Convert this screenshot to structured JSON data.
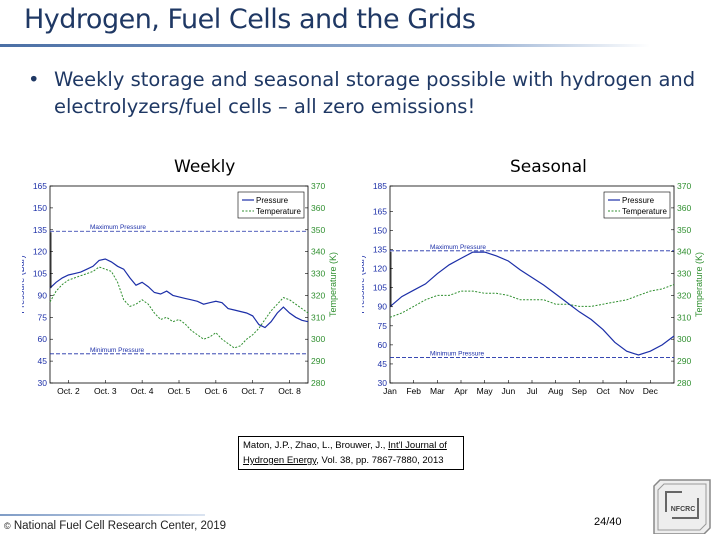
{
  "slide": {
    "title": "Hydrogen, Fuel Cells and the Grids",
    "bullet_symbol": "•",
    "bullet": "Weekly storage and seasonal storage possible with hydrogen and electrolyzers/fuel cells – all zero emissions!",
    "citation_line1_pre": "Maton, J.P., Zhao, L., Brouwer, J., ",
    "citation_line1_u": "Int'l Journal of",
    "citation_line2_u": "Hydrogen Energy",
    "citation_line2_post": ", Vol. 38, pp. 7867-7880, 2013",
    "footer": "National Fuel Cell Research Center, 2019",
    "footer_symbol": "©",
    "page": "24/40",
    "logo_text": "NFCRC"
  },
  "colors": {
    "title": "#1f3864",
    "pressure": "#1c2fa8",
    "temperature": "#2f8f2f",
    "axis": "#000000"
  },
  "chart_data": [
    {
      "type": "line",
      "panel_label": "Weekly",
      "x": [
        0,
        4,
        8,
        12,
        16,
        20,
        24,
        28,
        32,
        36,
        40,
        44,
        48,
        52,
        56,
        60,
        64,
        68,
        72,
        76,
        80,
        84,
        88,
        92,
        96,
        100,
        104,
        108,
        112,
        116,
        120,
        124,
        128,
        132,
        136,
        140,
        144,
        148,
        152,
        156,
        160,
        164,
        168
      ],
      "x_categories": [
        "Oct. 2",
        "Oct. 3",
        "Oct. 4",
        "Oct. 5",
        "Oct. 6",
        "Oct. 7",
        "Oct. 8"
      ],
      "x_tick_positions": [
        12,
        36,
        60,
        84,
        108,
        132,
        156
      ],
      "xlim": [
        0,
        168
      ],
      "series": [
        {
          "name": "Pressure",
          "axis": "left",
          "values": [
            95,
            99,
            102,
            104,
            105,
            106,
            108,
            110,
            114,
            115,
            113,
            110,
            108,
            102,
            97,
            99,
            96,
            92,
            91,
            93,
            90,
            89,
            88,
            87,
            86,
            84,
            85,
            86,
            85,
            81,
            80,
            79,
            78,
            76,
            70,
            68,
            72,
            78,
            82,
            78,
            75,
            73,
            72
          ]
        },
        {
          "name": "Temperature",
          "axis": "right",
          "values": [
            317,
            322,
            325,
            327,
            328,
            329,
            330,
            331,
            333,
            332,
            331,
            326,
            318,
            315,
            316,
            318,
            316,
            312,
            309,
            310,
            308,
            309,
            307,
            304,
            302,
            300,
            301,
            303,
            300,
            298,
            296,
            297,
            300,
            302,
            305,
            309,
            313,
            316,
            319,
            318,
            316,
            314,
            312
          ]
        }
      ],
      "ylim_left": [
        30,
        165
      ],
      "y_ticks_left": [
        30,
        45,
        60,
        75,
        90,
        105,
        120,
        135,
        150,
        165
      ],
      "ylim_right": [
        280,
        370
      ],
      "y_ticks_right": [
        280,
        290,
        300,
        310,
        320,
        330,
        340,
        350,
        360,
        370
      ],
      "ylabel_left": "Pressure (Bar)",
      "ylabel_right": "Temperature (K)",
      "legend": [
        "Pressure",
        "Temperature"
      ],
      "legend_placement": "top-right",
      "annotations": [
        {
          "text": "Maximum Pressure",
          "y": 134
        },
        {
          "text": "Minimum Pressure",
          "y": 50
        }
      ]
    },
    {
      "type": "line",
      "panel_label": "Seasonal",
      "x": [
        0,
        0.5,
        1,
        1.5,
        2,
        2.5,
        3,
        3.5,
        4,
        4.5,
        5,
        5.5,
        6,
        6.5,
        7,
        7.5,
        8,
        8.5,
        9,
        9.5,
        10,
        10.5,
        11,
        11.5,
        12
      ],
      "x_categories": [
        "Jan",
        "Feb",
        "Mar",
        "Apr",
        "May",
        "Jun",
        "Jul",
        "Aug",
        "Sep",
        "Oct",
        "Nov",
        "Dec"
      ],
      "x_tick_positions": [
        0,
        1,
        2,
        3,
        4,
        5,
        6,
        7,
        8,
        9,
        10,
        11
      ],
      "xlim": [
        0,
        12
      ],
      "series": [
        {
          "name": "Pressure",
          "axis": "left",
          "values": [
            90,
            98,
            103,
            108,
            116,
            123,
            128,
            133,
            133,
            130,
            126,
            119,
            113,
            107,
            100,
            93,
            86,
            80,
            72,
            62,
            55,
            52,
            55,
            60,
            67
          ]
        },
        {
          "name": "Temperature",
          "axis": "right",
          "values": [
            310,
            312,
            315,
            318,
            320,
            320,
            322,
            322,
            321,
            321,
            320,
            318,
            318,
            318,
            316,
            316,
            315,
            315,
            316,
            317,
            318,
            320,
            322,
            323,
            325
          ]
        }
      ],
      "ylim_left": [
        30,
        185
      ],
      "y_ticks_left": [
        30,
        45,
        60,
        75,
        90,
        105,
        120,
        135,
        150,
        165,
        185
      ],
      "ylim_right": [
        280,
        370
      ],
      "y_ticks_right": [
        280,
        290,
        300,
        310,
        320,
        330,
        340,
        350,
        360,
        370
      ],
      "ylabel_left": "Pressure (Bar)",
      "ylabel_right": "Temperature (K)",
      "legend": [
        "Pressure",
        "Temperature"
      ],
      "legend_placement": "top-right",
      "annotations": [
        {
          "text": "Maximum Pressure",
          "y": 134
        },
        {
          "text": "Minimum Pressure",
          "y": 50
        }
      ]
    }
  ]
}
